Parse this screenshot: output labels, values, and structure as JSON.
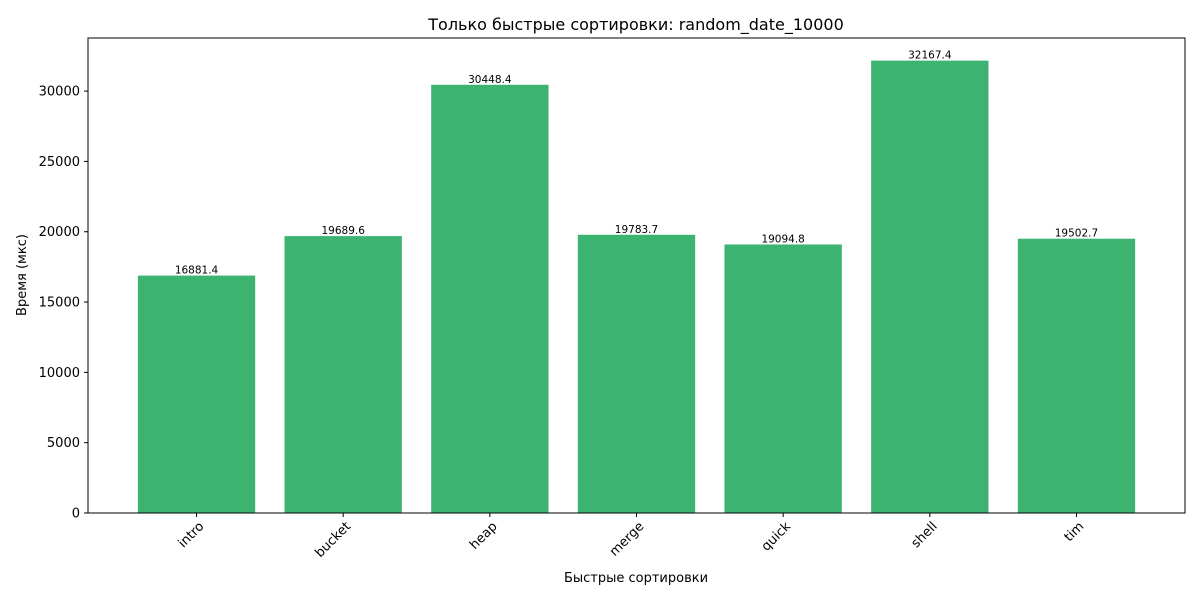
{
  "chart_data": {
    "type": "bar",
    "title": "Только быстрые сортировки: random_date_10000",
    "xlabel": "Быстрые сортировки",
    "ylabel": "Время (мкс)",
    "categories": [
      "intro",
      "bucket",
      "heap",
      "merge",
      "quick",
      "shell",
      "tim"
    ],
    "values": [
      16881.4,
      19689.6,
      30448.4,
      19783.7,
      19094.8,
      32167.4,
      19502.7
    ],
    "data_labels": [
      "16881.4",
      "19689.6",
      "30448.4",
      "19783.7",
      "19094.8",
      "32167.4",
      "19502.7"
    ],
    "ylim": [
      0,
      33775.77
    ],
    "yticks": [
      0,
      5000,
      10000,
      15000,
      20000,
      25000,
      30000
    ],
    "ytick_labels": [
      "0",
      "5000",
      "10000",
      "15000",
      "20000",
      "25000",
      "30000"
    ],
    "xtick_rotation_deg": 45,
    "grid": false,
    "legend": "none",
    "bar_color": "#3cb371"
  }
}
